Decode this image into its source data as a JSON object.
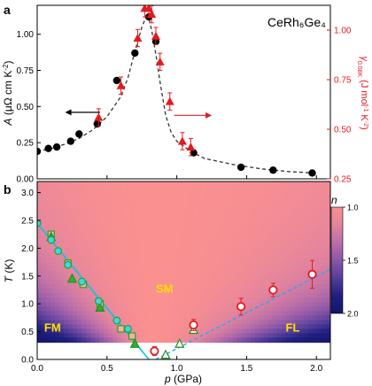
{
  "chart_data": [
    {
      "panel_label": "a",
      "type": "scatter",
      "title": "CeRh₆Ge₄",
      "xlabel": "",
      "xlim": [
        0.0,
        2.1
      ],
      "ylim": [
        0.0,
        1.2
      ],
      "y2lim": [
        0.25,
        1.125
      ],
      "ylabel_parts": [
        "A",
        " (μΩ cm K",
        "-2",
        ")"
      ],
      "y2label_parts": [
        "γ",
        "0.08K",
        " (J mol",
        "-1",
        " K",
        "-2",
        ")"
      ],
      "xticks": [
        0.0,
        0.5,
        1.0,
        1.5,
        2.0
      ],
      "yticks": [
        "0.00",
        "0.25",
        "0.50",
        "0.75",
        "1.00"
      ],
      "y2ticks": [
        "0.25",
        "0.50",
        "0.75",
        "1.00"
      ],
      "series": [
        {
          "axis": "left",
          "color": "#000000",
          "marker": "circle",
          "x": [
            0.0,
            0.08,
            0.14,
            0.24,
            0.3,
            0.43,
            0.57,
            0.7,
            0.8,
            0.85,
            1.12,
            1.46,
            1.69,
            1.97
          ],
          "y": [
            0.19,
            0.21,
            0.22,
            0.26,
            0.31,
            0.38,
            0.68,
            0.87,
            1.12,
            0.95,
            0.18,
            0.08,
            0.06,
            0.04
          ]
        },
        {
          "axis": "right",
          "color": "#e41a1c",
          "marker": "triangle",
          "x": [
            0.44,
            0.6,
            0.72,
            0.77,
            0.8,
            0.82,
            0.85,
            0.88,
            0.95,
            1.04,
            1.1
          ],
          "y": [
            0.56,
            0.72,
            0.96,
            1.11,
            1.11,
            1.08,
            0.97,
            0.84,
            0.64,
            0.44,
            0.41
          ],
          "yerr": [
            0.03,
            0.03,
            0.03,
            0.03,
            0.03,
            0.03,
            0.03,
            0.03,
            0.03,
            0.03,
            0.03
          ]
        }
      ],
      "fit_curve": {
        "x": [
          0.0,
          0.1,
          0.2,
          0.3,
          0.4,
          0.5,
          0.6,
          0.65,
          0.7,
          0.75,
          0.78,
          0.8,
          0.82,
          0.85,
          0.88,
          0.92,
          0.96,
          1.0,
          1.1,
          1.2,
          1.4,
          1.6,
          1.8,
          2.0
        ],
        "y": [
          0.19,
          0.21,
          0.24,
          0.28,
          0.34,
          0.43,
          0.57,
          0.7,
          0.88,
          1.05,
          1.12,
          1.11,
          1.03,
          0.86,
          0.67,
          0.44,
          0.32,
          0.26,
          0.19,
          0.14,
          0.1,
          0.07,
          0.05,
          0.04
        ]
      },
      "arrows": [
        {
          "direction": "left",
          "x_from": 0.45,
          "x_to": 0.2,
          "y": 0.46,
          "color": "#000000"
        },
        {
          "direction": "right",
          "x_from": 0.98,
          "x_to": 1.25,
          "y": 0.57,
          "color": "#e41a1c"
        }
      ]
    },
    {
      "panel_label": "b",
      "type": "heatmap",
      "xlabel_parts": [
        "p",
        " (GPa)"
      ],
      "ylabel_parts": [
        "T",
        " (K)"
      ],
      "xlim": [
        0.0,
        2.1
      ],
      "ylim": [
        0.0,
        3.2
      ],
      "xticks": [
        "0.0",
        "0.5",
        "1.0",
        "1.5",
        "2.0"
      ],
      "yticks": [
        "0.0",
        "0.5",
        "1.0",
        "1.5",
        "2.0",
        "2.5",
        "3.0"
      ],
      "colorbar": {
        "label": "n",
        "min": 1.0,
        "max": 2.0,
        "ticks": [
          "1.0",
          "1.5",
          "2.0"
        ],
        "colors": [
          "#fa9090",
          "#e3849e",
          "#bb6fa8",
          "#8b56a8",
          "#543d9a",
          "#201f80",
          "#12166b"
        ]
      },
      "masked_below_T": 0.3,
      "regions": [
        {
          "text": "FM",
          "x": 0.05,
          "y": 0.5
        },
        {
          "text": "SM",
          "x": 0.85,
          "y": 1.2
        },
        {
          "text": "FL",
          "x": 1.78,
          "y": 0.5
        }
      ],
      "fm_boundary_line": {
        "x": [
          0.0,
          0.8
        ],
        "y": [
          2.45,
          0.0
        ],
        "color": "#00c8e0"
      },
      "fl_dashed_line": {
        "x": [
          0.85,
          2.1
        ],
        "y": [
          0.0,
          1.62
        ],
        "color": "#2aa5ff"
      },
      "series": [
        {
          "name_marker": "cyan circles",
          "x": [
            0.0,
            0.1,
            0.15,
            0.22,
            0.32,
            0.44,
            0.57,
            0.65
          ],
          "y": [
            2.45,
            2.15,
            1.95,
            1.7,
            1.4,
            1.05,
            0.7,
            0.55
          ]
        },
        {
          "name_marker": "green triangles",
          "x": [
            0.1,
            0.25,
            0.45,
            0.7,
            0.92,
            1.02,
            1.12
          ],
          "y": [
            2.2,
            1.45,
            0.93,
            0.28,
            0.08,
            0.28,
            0.53
          ]
        },
        {
          "name_marker": "green squares",
          "x": [
            0.1,
            0.22,
            0.33,
            0.45,
            0.6,
            0.68
          ],
          "y": [
            2.25,
            1.73,
            1.35,
            1.0,
            0.55,
            0.42
          ]
        },
        {
          "name_marker": "red-white circles",
          "x": [
            0.84,
            1.12,
            1.46,
            1.69,
            1.97
          ],
          "y": [
            0.15,
            0.62,
            0.95,
            1.25,
            1.53
          ],
          "yerr": [
            0.08,
            0.1,
            0.15,
            0.12,
            0.25
          ]
        }
      ]
    }
  ]
}
